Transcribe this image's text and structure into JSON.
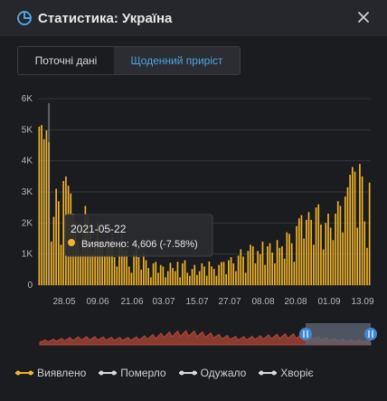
{
  "header": {
    "title": "Статистика: Україна"
  },
  "tabs": [
    {
      "label": "Поточні дані"
    },
    {
      "label": "Щоденний приріст"
    }
  ],
  "tooltip": {
    "date": "2021-05-22",
    "text": "Виявлено: 4,606 (-7.58%)"
  },
  "legend": [
    {
      "label": "Виявлено",
      "color": "#f0b429"
    },
    {
      "label": "Померло",
      "color": "#d8d8d8"
    },
    {
      "label": "Одужало",
      "color": "#d8d8d8"
    },
    {
      "label": "Хворіє",
      "color": "#d8d8d8"
    }
  ],
  "colors": {
    "accent": "#4fa3e0",
    "bar": "#f0b429",
    "navigator": "#b04a3a"
  },
  "chart_data": {
    "type": "bar",
    "series_name": "Виявлено",
    "y_ticks": [
      "0",
      "1K",
      "2K",
      "3K",
      "4K",
      "5K",
      "6K"
    ],
    "ylim": [
      0,
      6000
    ],
    "x_ticks": [
      "28.05",
      "09.06",
      "21.06",
      "03.07",
      "15.07",
      "27.07",
      "08.08",
      "20.08",
      "01.09",
      "13.09"
    ],
    "values": [
      5100,
      5150,
      4700,
      4980,
      4606,
      1400,
      2200,
      3100,
      2700,
      1300,
      3350,
      3500,
      3200,
      2950,
      2300,
      2000,
      1400,
      1050,
      1800,
      2550,
      2200,
      1850,
      1100,
      1400,
      2000,
      1300,
      1250,
      950,
      1500,
      1400,
      1650,
      900,
      600,
      1300,
      1600,
      1100,
      1150,
      600,
      400,
      1050,
      1300,
      900,
      500,
      1050,
      800,
      550,
      250,
      700,
      750,
      400,
      650,
      600,
      250,
      450,
      720,
      550,
      450,
      750,
      250,
      700,
      800,
      400,
      300,
      520,
      650,
      330,
      450,
      700,
      600,
      300,
      760,
      600,
      520,
      300,
      650,
      740,
      750,
      350,
      800,
      900,
      700,
      450,
      950,
      1150,
      920,
      400,
      1100,
      1300,
      1250,
      700,
      1100,
      1000,
      1400,
      650,
      1250,
      1350,
      1050,
      700,
      1450,
      1200,
      1250,
      850,
      1700,
      1650,
      1350,
      750,
      1900,
      2150,
      2250,
      1500,
      2100,
      2350,
      2100,
      1300,
      2500,
      2600,
      1950,
      1150,
      2000,
      2300,
      1850,
      1450,
      2300,
      2700,
      2550,
      1700,
      2850,
      3150,
      3550,
      3800,
      3650,
      1850,
      3900,
      3500,
      2050,
      1200,
      3300
    ]
  }
}
